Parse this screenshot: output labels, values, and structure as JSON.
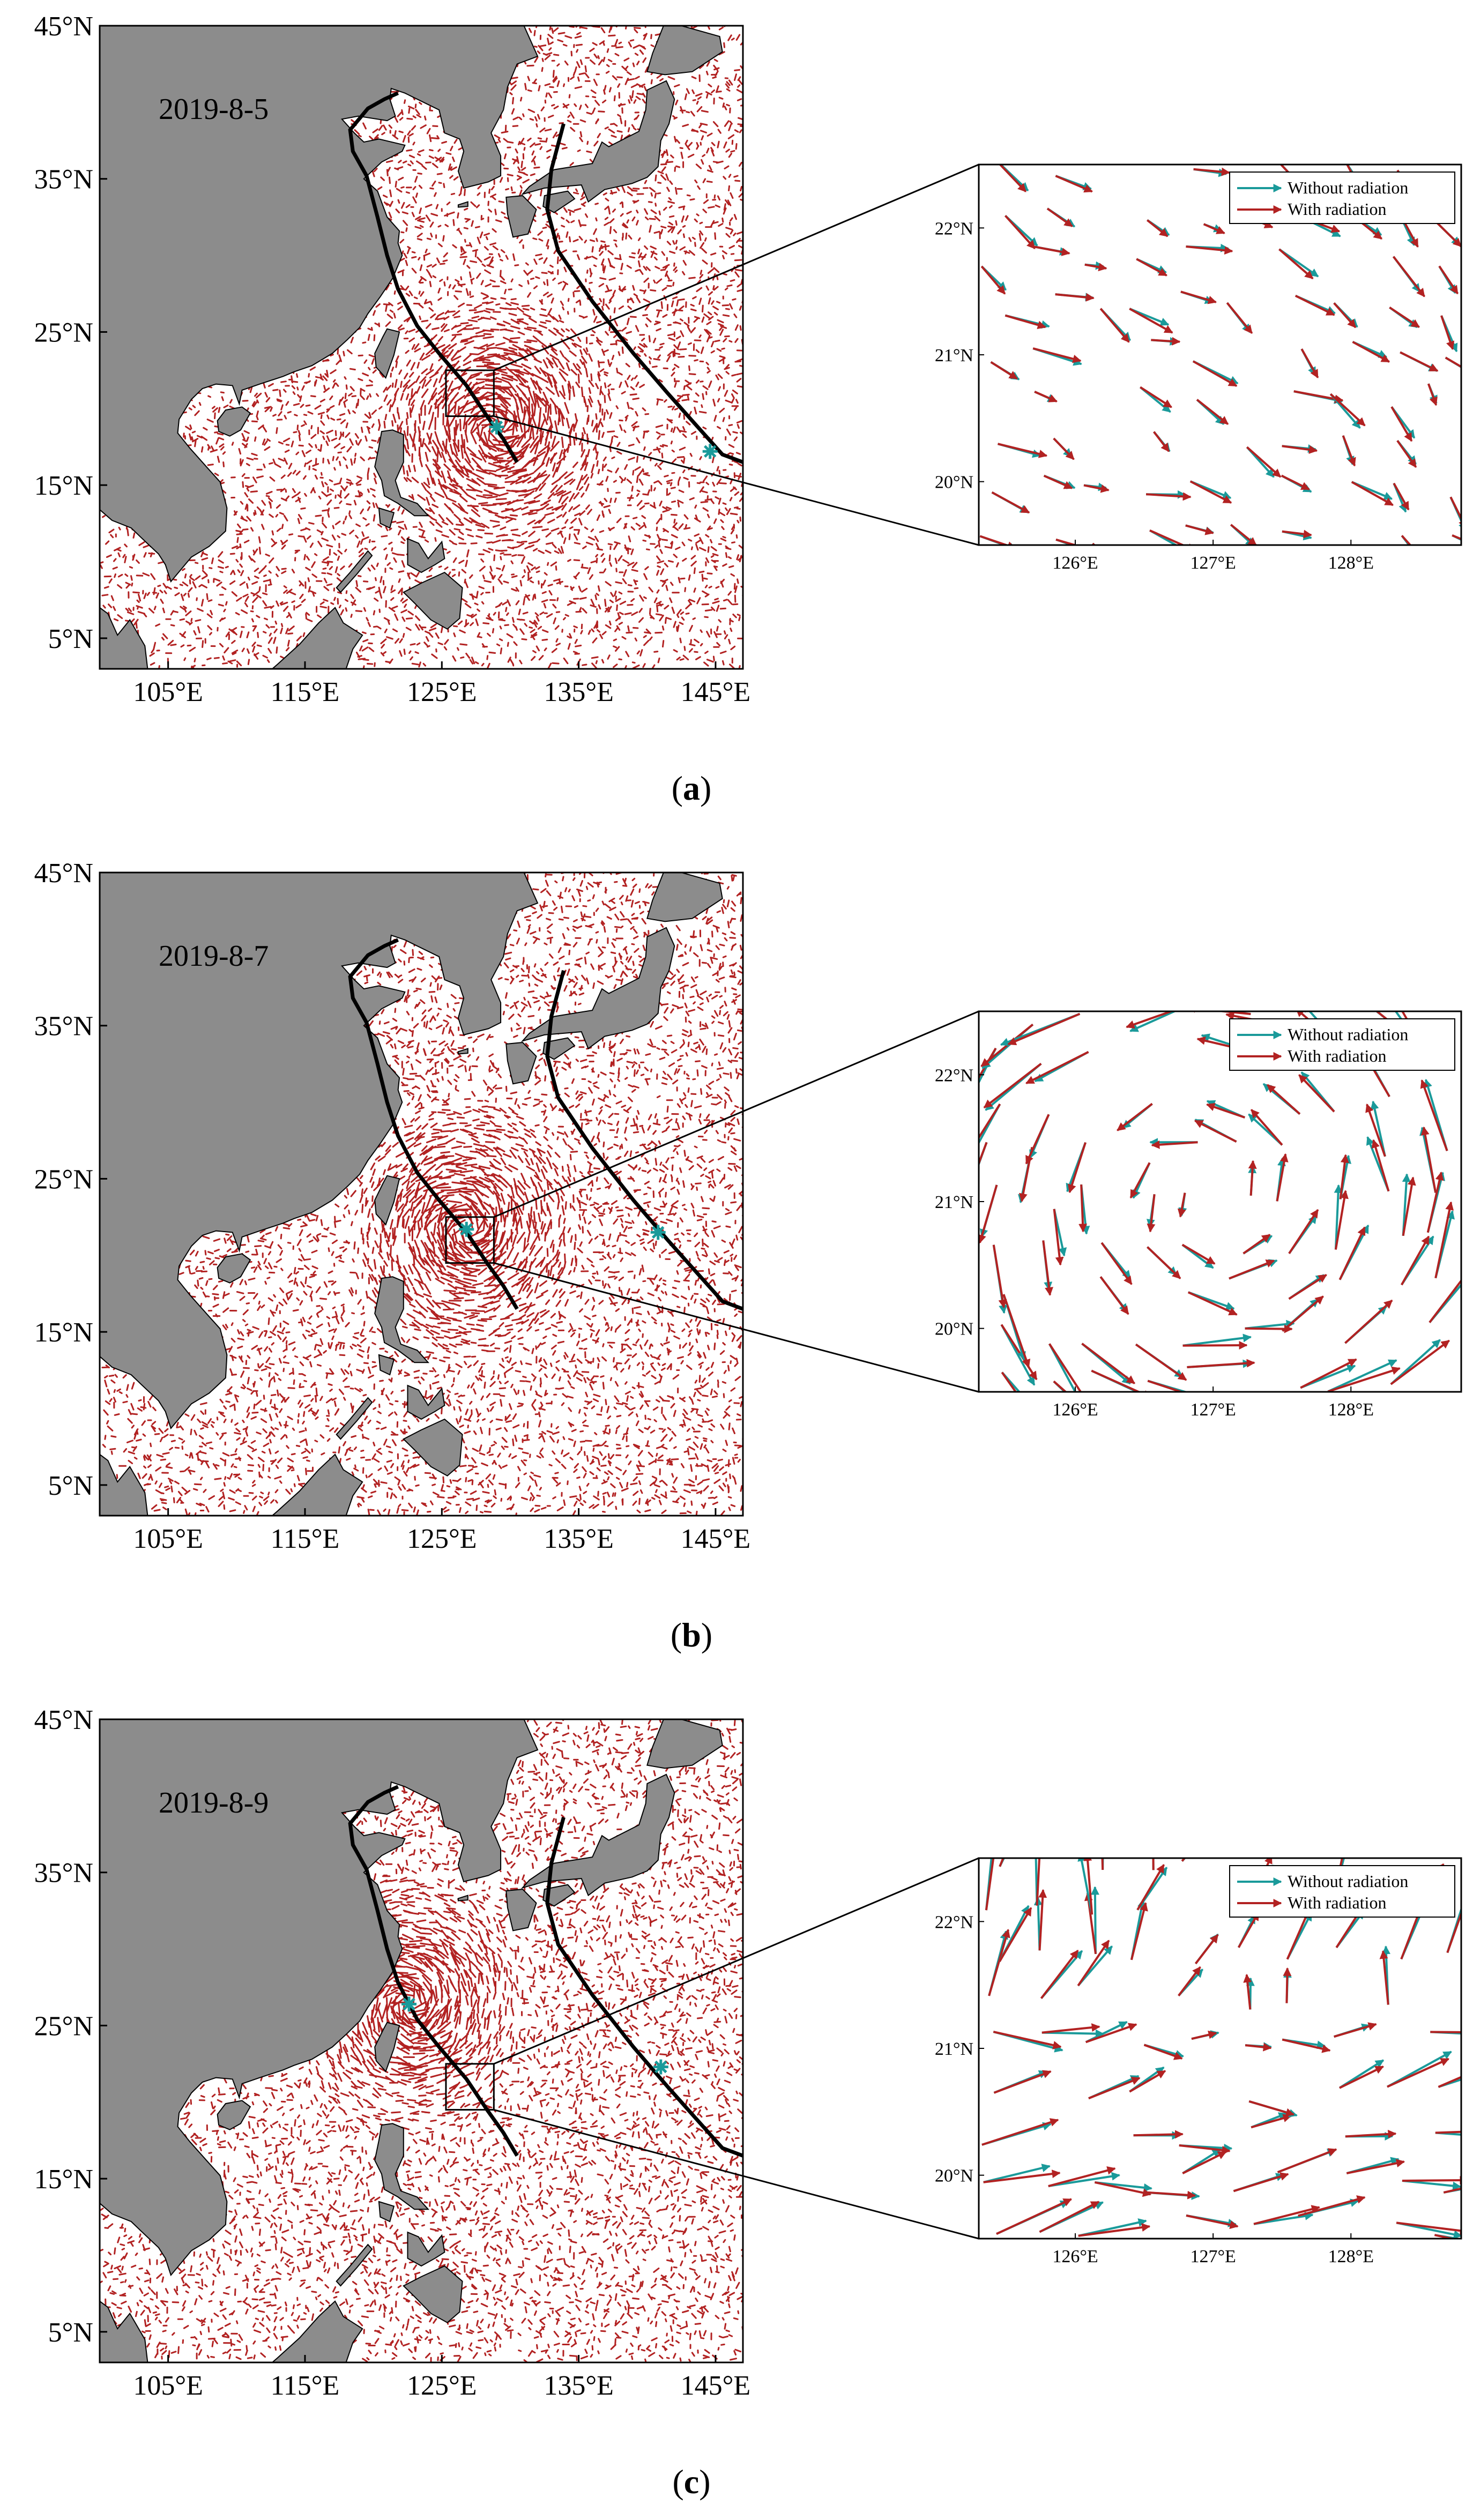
{
  "figure": {
    "panels": [
      {
        "id": "a",
        "date": "2019-8-5",
        "caption_letter": "a",
        "typhoon_centers": [
          [
            129.0,
            18.8
          ],
          [
            144.6,
            17.2
          ]
        ],
        "map_lat_ticks": [
          "45°N",
          "35°N",
          "25°N",
          "15°N",
          "5°N"
        ],
        "map_lon_ticks": [
          "105°E",
          "115°E",
          "125°E",
          "135°E",
          "145°E"
        ],
        "inset_lat_ticks": [
          "22°N",
          "21°N",
          "20°N"
        ],
        "inset_lon_ticks": [
          "126°E",
          "127°E",
          "128°E"
        ],
        "legend": [
          "Without radiation",
          "With radiation"
        ]
      },
      {
        "id": "b",
        "date": "2019-8-7",
        "caption_letter": "b",
        "typhoon_centers": [
          [
            126.8,
            21.7
          ],
          [
            140.8,
            21.5
          ]
        ],
        "map_lat_ticks": [
          "45°N",
          "35°N",
          "25°N",
          "15°N",
          "5°N"
        ],
        "map_lon_ticks": [
          "105°E",
          "115°E",
          "125°E",
          "135°E",
          "145°E"
        ],
        "inset_lat_ticks": [
          "22°N",
          "21°N",
          "20°N"
        ],
        "inset_lon_ticks": [
          "126°E",
          "127°E",
          "128°E"
        ],
        "legend": [
          "Without radiation",
          "With radiation"
        ]
      },
      {
        "id": "c",
        "date": "2019-8-9",
        "caption_letter": "c",
        "typhoon_centers": [
          [
            122.6,
            26.4
          ],
          [
            141.0,
            22.3
          ]
        ],
        "map_lat_ticks": [
          "45°N",
          "35°N",
          "25°N",
          "15°N",
          "5°N"
        ],
        "map_lon_ticks": [
          "105°E",
          "115°E",
          "125°E",
          "135°E",
          "145°E"
        ],
        "inset_lat_ticks": [
          "22°N",
          "21°N",
          "20°N"
        ],
        "inset_lon_ticks": [
          "126°E",
          "127°E",
          "128°E"
        ],
        "legend": [
          "Without radiation",
          "With radiation"
        ]
      }
    ],
    "colors": {
      "land": "#8c8c8c",
      "ocean": "#ffffff",
      "with_radiation": "#b22222",
      "without_radiation": "#1a9a9a",
      "track": "#000000"
    },
    "map_extent": {
      "lon": [
        100,
        147
      ],
      "lat": [
        3,
        45
      ]
    },
    "inset_extent": {
      "lon": [
        125.3,
        128.8
      ],
      "lat": [
        19.5,
        22.5
      ]
    }
  }
}
